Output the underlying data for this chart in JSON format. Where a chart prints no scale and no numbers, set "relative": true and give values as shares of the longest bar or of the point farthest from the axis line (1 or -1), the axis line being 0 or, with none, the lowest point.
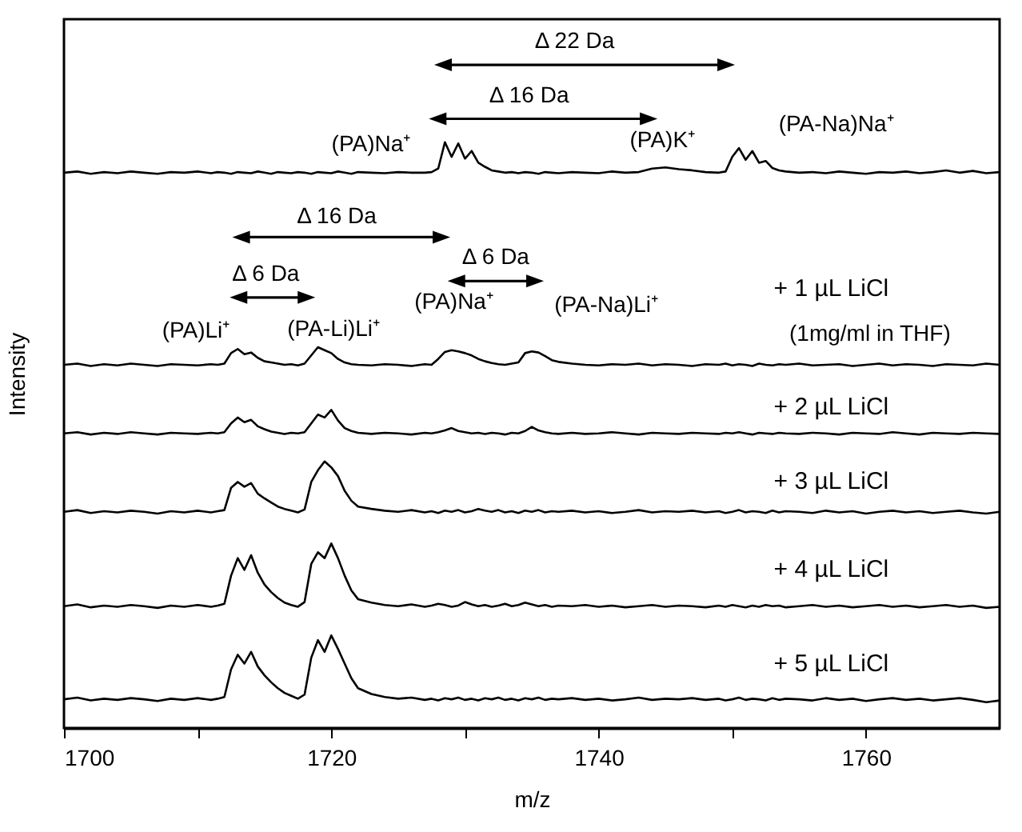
{
  "chart_data": {
    "type": "line",
    "relative": true,
    "xlabel": "m/z",
    "ylabel": "Intensity",
    "xlim": [
      1700,
      1770
    ],
    "xticks": [
      1700,
      {
        "value": 1710,
        "label": null
      },
      1720,
      {
        "value": 1730,
        "label": null
      },
      1740,
      {
        "value": 1750,
        "label": null
      },
      1760
    ],
    "x": [
      1700,
      1701,
      1702,
      1703,
      1704,
      1705,
      1706,
      1707,
      1708,
      1709,
      1710,
      1711,
      1711.5,
      1712,
      1712.5,
      1713,
      1713.5,
      1714,
      1714.5,
      1715,
      1715.5,
      1716,
      1716.5,
      1717,
      1717.5,
      1718,
      1718.5,
      1719,
      1719.5,
      1720,
      1720.5,
      1721,
      1721.5,
      1722,
      1723,
      1724,
      1725,
      1726,
      1727,
      1727.5,
      1728,
      1728.5,
      1729,
      1729.5,
      1730,
      1730.5,
      1731,
      1731.5,
      1732,
      1732.5,
      1733,
      1733.5,
      1734,
      1734.5,
      1735,
      1735.5,
      1736,
      1736.5,
      1737,
      1738,
      1739,
      1740,
      1741,
      1742,
      1743,
      1744,
      1745,
      1746,
      1747,
      1748,
      1749,
      1749.5,
      1750,
      1750.5,
      1751,
      1751.5,
      1752,
      1752.5,
      1753,
      1753.5,
      1754,
      1755,
      1756,
      1757,
      1758,
      1759,
      1760,
      1761,
      1762,
      1763,
      1764,
      1765,
      1766,
      1767,
      1768,
      1769,
      1770
    ],
    "series": [
      {
        "color": "#000000",
        "values": [
          0.948,
          0.95,
          0.946,
          0.949,
          0.947,
          0.95,
          0.948,
          0.946,
          0.949,
          0.948,
          0.95,
          0.947,
          0.949,
          0.948,
          0.946,
          0.949,
          0.948,
          0.947,
          0.95,
          0.948,
          0.946,
          0.949,
          0.948,
          0.947,
          0.949,
          0.948,
          0.946,
          0.949,
          0.948,
          0.947,
          0.95,
          0.948,
          0.946,
          0.949,
          0.948,
          0.947,
          0.949,
          0.948,
          0.948,
          0.949,
          0.955,
          1.0,
          0.975,
          0.998,
          0.972,
          0.985,
          0.965,
          0.958,
          0.952,
          0.95,
          0.948,
          0.949,
          0.947,
          0.949,
          0.948,
          0.946,
          0.949,
          0.948,
          0.947,
          0.949,
          0.948,
          0.947,
          0.95,
          0.948,
          0.949,
          0.955,
          0.957,
          0.954,
          0.952,
          0.949,
          0.948,
          0.95,
          0.975,
          0.99,
          0.97,
          0.985,
          0.965,
          0.968,
          0.956,
          0.952,
          0.95,
          0.948,
          0.949,
          0.947,
          0.95,
          0.948,
          0.946,
          0.949,
          0.948,
          0.95,
          0.947,
          0.949,
          0.952,
          0.948,
          0.951,
          0.947,
          0.949
        ]
      },
      {
        "name": "+ 1 µL LiCl",
        "color": "#000000",
        "values": [
          0.62,
          0.622,
          0.618,
          0.621,
          0.619,
          0.622,
          0.62,
          0.618,
          0.621,
          0.62,
          0.619,
          0.621,
          0.62,
          0.622,
          0.64,
          0.647,
          0.638,
          0.641,
          0.632,
          0.626,
          0.624,
          0.622,
          0.62,
          0.621,
          0.619,
          0.622,
          0.636,
          0.65,
          0.645,
          0.64,
          0.63,
          0.624,
          0.621,
          0.62,
          0.619,
          0.621,
          0.62,
          0.618,
          0.621,
          0.62,
          0.63,
          0.642,
          0.645,
          0.643,
          0.64,
          0.636,
          0.63,
          0.626,
          0.623,
          0.621,
          0.62,
          0.622,
          0.624,
          0.64,
          0.643,
          0.641,
          0.635,
          0.628,
          0.625,
          0.622,
          0.62,
          0.619,
          0.621,
          0.62,
          0.622,
          0.619,
          0.621,
          0.62,
          0.618,
          0.621,
          0.62,
          0.622,
          0.619,
          0.621,
          0.62,
          0.618,
          0.622,
          0.62,
          0.619,
          0.621,
          0.62,
          0.622,
          0.619,
          0.62,
          0.621,
          0.618,
          0.62,
          0.622,
          0.619,
          0.621,
          0.62,
          0.618,
          0.621,
          0.62,
          0.619,
          0.622,
          0.62
        ]
      },
      {
        "name": "+ 2 µL LiCl",
        "color": "#000000",
        "values": [
          0.503,
          0.505,
          0.501,
          0.504,
          0.502,
          0.505,
          0.503,
          0.501,
          0.504,
          0.503,
          0.502,
          0.504,
          0.503,
          0.505,
          0.52,
          0.53,
          0.522,
          0.526,
          0.515,
          0.51,
          0.506,
          0.504,
          0.502,
          0.504,
          0.503,
          0.505,
          0.52,
          0.535,
          0.53,
          0.543,
          0.525,
          0.512,
          0.507,
          0.504,
          0.502,
          0.504,
          0.503,
          0.501,
          0.504,
          0.503,
          0.505,
          0.508,
          0.512,
          0.507,
          0.505,
          0.503,
          0.504,
          0.502,
          0.504,
          0.503,
          0.501,
          0.504,
          0.503,
          0.507,
          0.514,
          0.508,
          0.505,
          0.503,
          0.502,
          0.504,
          0.502,
          0.503,
          0.505,
          0.503,
          0.501,
          0.504,
          0.503,
          0.502,
          0.504,
          0.503,
          0.502,
          0.504,
          0.503,
          0.505,
          0.503,
          0.501,
          0.504,
          0.503,
          0.502,
          0.504,
          0.503,
          0.502,
          0.504,
          0.503,
          0.501,
          0.504,
          0.503,
          0.502,
          0.505,
          0.503,
          0.501,
          0.504,
          0.503,
          0.502,
          0.504,
          0.503,
          0.502
        ]
      },
      {
        "name": "+ 3 µL LiCl",
        "color": "#000000",
        "values": [
          0.369,
          0.372,
          0.367,
          0.37,
          0.368,
          0.371,
          0.369,
          0.366,
          0.37,
          0.368,
          0.371,
          0.368,
          0.37,
          0.372,
          0.41,
          0.42,
          0.412,
          0.418,
          0.4,
          0.392,
          0.385,
          0.378,
          0.374,
          0.371,
          0.368,
          0.373,
          0.42,
          0.44,
          0.455,
          0.445,
          0.43,
          0.405,
          0.388,
          0.378,
          0.374,
          0.371,
          0.369,
          0.372,
          0.368,
          0.37,
          0.367,
          0.371,
          0.369,
          0.372,
          0.368,
          0.37,
          0.374,
          0.371,
          0.369,
          0.372,
          0.368,
          0.37,
          0.367,
          0.371,
          0.369,
          0.372,
          0.368,
          0.37,
          0.369,
          0.371,
          0.368,
          0.37,
          0.367,
          0.369,
          0.372,
          0.368,
          0.37,
          0.369,
          0.371,
          0.368,
          0.37,
          0.367,
          0.369,
          0.372,
          0.368,
          0.37,
          0.369,
          0.367,
          0.371,
          0.368,
          0.37,
          0.369,
          0.367,
          0.371,
          0.368,
          0.37,
          0.366,
          0.369,
          0.371,
          0.368,
          0.37,
          0.367,
          0.369,
          0.371,
          0.368,
          0.366,
          0.369
        ]
      },
      {
        "name": "+ 4 µL LiCl",
        "color": "#000000",
        "values": [
          0.208,
          0.211,
          0.206,
          0.209,
          0.207,
          0.21,
          0.208,
          0.205,
          0.209,
          0.207,
          0.21,
          0.207,
          0.209,
          0.212,
          0.26,
          0.29,
          0.27,
          0.295,
          0.265,
          0.245,
          0.232,
          0.222,
          0.214,
          0.21,
          0.207,
          0.215,
          0.28,
          0.3,
          0.29,
          0.315,
          0.29,
          0.26,
          0.235,
          0.22,
          0.214,
          0.21,
          0.208,
          0.211,
          0.207,
          0.209,
          0.212,
          0.21,
          0.207,
          0.209,
          0.215,
          0.211,
          0.208,
          0.21,
          0.207,
          0.209,
          0.212,
          0.208,
          0.21,
          0.214,
          0.211,
          0.208,
          0.21,
          0.207,
          0.209,
          0.208,
          0.21,
          0.207,
          0.209,
          0.206,
          0.208,
          0.21,
          0.207,
          0.209,
          0.208,
          0.206,
          0.209,
          0.207,
          0.21,
          0.208,
          0.206,
          0.209,
          0.207,
          0.21,
          0.208,
          0.209,
          0.206,
          0.208,
          0.21,
          0.207,
          0.209,
          0.206,
          0.208,
          0.21,
          0.207,
          0.209,
          0.206,
          0.208,
          0.21,
          0.207,
          0.209,
          0.205,
          0.207
        ]
      },
      {
        "name": "+ 5 µL LiCl",
        "color": "#000000",
        "values": [
          0.049,
          0.052,
          0.047,
          0.05,
          0.048,
          0.051,
          0.049,
          0.046,
          0.05,
          0.048,
          0.051,
          0.048,
          0.05,
          0.053,
          0.1,
          0.125,
          0.11,
          0.13,
          0.105,
          0.09,
          0.078,
          0.068,
          0.06,
          0.055,
          0.05,
          0.057,
          0.12,
          0.15,
          0.13,
          0.158,
          0.135,
          0.11,
          0.085,
          0.068,
          0.058,
          0.053,
          0.05,
          0.052,
          0.048,
          0.05,
          0.047,
          0.051,
          0.049,
          0.052,
          0.048,
          0.05,
          0.047,
          0.051,
          0.049,
          0.052,
          0.048,
          0.05,
          0.047,
          0.051,
          0.049,
          0.052,
          0.048,
          0.05,
          0.049,
          0.051,
          0.048,
          0.05,
          0.047,
          0.049,
          0.052,
          0.048,
          0.05,
          0.049,
          0.051,
          0.048,
          0.05,
          0.047,
          0.049,
          0.052,
          0.048,
          0.05,
          0.049,
          0.047,
          0.051,
          0.048,
          0.05,
          0.049,
          0.047,
          0.051,
          0.048,
          0.05,
          0.046,
          0.049,
          0.051,
          0.048,
          0.05,
          0.047,
          0.049,
          0.051,
          0.048,
          0.044,
          0.047
        ]
      }
    ],
    "annotations": [
      "Δ 22 Da",
      "Δ 16 Da",
      "(PA)Na⁺",
      "(PA)K⁺",
      "(PA-Na)Na⁺",
      "Δ 16 Da",
      "Δ 6 Da",
      "Δ 6 Da",
      "(PA)Li⁺",
      "(PA-Li)Li⁺",
      "(PA)Na⁺",
      "(PA-Na)Li⁺",
      "(1mg/ml in THF)"
    ]
  }
}
